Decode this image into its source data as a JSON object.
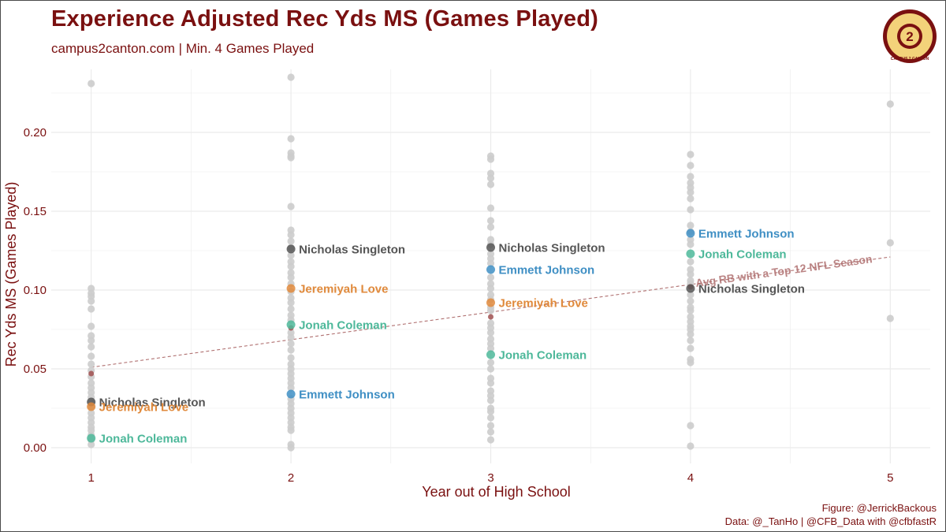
{
  "title": "Experience Adjusted Rec Yds MS (Games Played)",
  "subtitle": "campus2canton.com | Min. 4 Games Played",
  "caption_line1": "Figure: @JerrickBackous",
  "caption_line2": "Data: @_TanHo | @CFB_Data with @cfbfastR",
  "logo_text": "CAMPUS 2 CANTON",
  "colors": {
    "title": "#7a1010",
    "grey_points": "#cccccc",
    "grid": "#ebebeb",
    "trend": "#b07070",
    "Nicholas Singleton": "#555555",
    "Jeremiyah Love": "#e08a3c",
    "Jonah Coleman": "#4db89a",
    "Emmett Johnson": "#3f8fc4"
  },
  "chart_data": {
    "type": "scatter",
    "title": "Experience Adjusted Rec Yds MS (Games Played)",
    "xlabel": "Year out of High School",
    "ylabel": "Rec Yds MS (Games Played)",
    "xlim": [
      0.8,
      5.2
    ],
    "ylim": [
      -0.01,
      0.24
    ],
    "xticks": [
      1,
      2,
      3,
      4,
      5
    ],
    "yticks": [
      0.0,
      0.05,
      0.1,
      0.15,
      0.2
    ],
    "ytick_labels": [
      "0.00",
      "0.05",
      "0.10",
      "0.15",
      "0.20"
    ],
    "grid": true,
    "background_points": [
      {
        "x": 1,
        "y": 0.231
      },
      {
        "x": 1,
        "y": 0.101
      },
      {
        "x": 1,
        "y": 0.098
      },
      {
        "x": 1,
        "y": 0.096
      },
      {
        "x": 1,
        "y": 0.093
      },
      {
        "x": 1,
        "y": 0.088
      },
      {
        "x": 1,
        "y": 0.077
      },
      {
        "x": 1,
        "y": 0.071
      },
      {
        "x": 1,
        "y": 0.068
      },
      {
        "x": 1,
        "y": 0.064
      },
      {
        "x": 1,
        "y": 0.058
      },
      {
        "x": 1,
        "y": 0.053
      },
      {
        "x": 1,
        "y": 0.049
      },
      {
        "x": 1,
        "y": 0.045
      },
      {
        "x": 1,
        "y": 0.041
      },
      {
        "x": 1,
        "y": 0.038
      },
      {
        "x": 1,
        "y": 0.035
      },
      {
        "x": 1,
        "y": 0.032
      },
      {
        "x": 1,
        "y": 0.029
      },
      {
        "x": 1,
        "y": 0.026
      },
      {
        "x": 1,
        "y": 0.022
      },
      {
        "x": 1,
        "y": 0.019
      },
      {
        "x": 1,
        "y": 0.016
      },
      {
        "x": 1,
        "y": 0.013
      },
      {
        "x": 1,
        "y": 0.011
      },
      {
        "x": 1,
        "y": 0.008
      },
      {
        "x": 1,
        "y": 0.005
      },
      {
        "x": 1,
        "y": 0.002
      },
      {
        "x": 2,
        "y": 0.235
      },
      {
        "x": 2,
        "y": 0.196
      },
      {
        "x": 2,
        "y": 0.187
      },
      {
        "x": 2,
        "y": 0.185
      },
      {
        "x": 2,
        "y": 0.184
      },
      {
        "x": 2,
        "y": 0.153
      },
      {
        "x": 2,
        "y": 0.138
      },
      {
        "x": 2,
        "y": 0.135
      },
      {
        "x": 2,
        "y": 0.131
      },
      {
        "x": 2,
        "y": 0.127
      },
      {
        "x": 2,
        "y": 0.122
      },
      {
        "x": 2,
        "y": 0.118
      },
      {
        "x": 2,
        "y": 0.115
      },
      {
        "x": 2,
        "y": 0.111
      },
      {
        "x": 2,
        "y": 0.108
      },
      {
        "x": 2,
        "y": 0.104
      },
      {
        "x": 2,
        "y": 0.099
      },
      {
        "x": 2,
        "y": 0.095
      },
      {
        "x": 2,
        "y": 0.092
      },
      {
        "x": 2,
        "y": 0.088
      },
      {
        "x": 2,
        "y": 0.084
      },
      {
        "x": 2,
        "y": 0.081
      },
      {
        "x": 2,
        "y": 0.073
      },
      {
        "x": 2,
        "y": 0.07
      },
      {
        "x": 2,
        "y": 0.066
      },
      {
        "x": 2,
        "y": 0.062
      },
      {
        "x": 2,
        "y": 0.057
      },
      {
        "x": 2,
        "y": 0.053
      },
      {
        "x": 2,
        "y": 0.05
      },
      {
        "x": 2,
        "y": 0.047
      },
      {
        "x": 2,
        "y": 0.044
      },
      {
        "x": 2,
        "y": 0.041
      },
      {
        "x": 2,
        "y": 0.038
      },
      {
        "x": 2,
        "y": 0.031
      },
      {
        "x": 2,
        "y": 0.028
      },
      {
        "x": 2,
        "y": 0.025
      },
      {
        "x": 2,
        "y": 0.022
      },
      {
        "x": 2,
        "y": 0.019
      },
      {
        "x": 2,
        "y": 0.016
      },
      {
        "x": 2,
        "y": 0.013
      },
      {
        "x": 2,
        "y": 0.011
      },
      {
        "x": 2,
        "y": 0.002
      },
      {
        "x": 2,
        "y": 0.0
      },
      {
        "x": 3,
        "y": 0.185
      },
      {
        "x": 3,
        "y": 0.183
      },
      {
        "x": 3,
        "y": 0.174
      },
      {
        "x": 3,
        "y": 0.171
      },
      {
        "x": 3,
        "y": 0.167
      },
      {
        "x": 3,
        "y": 0.152
      },
      {
        "x": 3,
        "y": 0.144
      },
      {
        "x": 3,
        "y": 0.14
      },
      {
        "x": 3,
        "y": 0.132
      },
      {
        "x": 3,
        "y": 0.129
      },
      {
        "x": 3,
        "y": 0.123
      },
      {
        "x": 3,
        "y": 0.12
      },
      {
        "x": 3,
        "y": 0.117
      },
      {
        "x": 3,
        "y": 0.108
      },
      {
        "x": 3,
        "y": 0.104
      },
      {
        "x": 3,
        "y": 0.101
      },
      {
        "x": 3,
        "y": 0.097
      },
      {
        "x": 3,
        "y": 0.094
      },
      {
        "x": 3,
        "y": 0.089
      },
      {
        "x": 3,
        "y": 0.087
      },
      {
        "x": 3,
        "y": 0.079
      },
      {
        "x": 3,
        "y": 0.076
      },
      {
        "x": 3,
        "y": 0.073
      },
      {
        "x": 3,
        "y": 0.069
      },
      {
        "x": 3,
        "y": 0.066
      },
      {
        "x": 3,
        "y": 0.063
      },
      {
        "x": 3,
        "y": 0.054
      },
      {
        "x": 3,
        "y": 0.05
      },
      {
        "x": 3,
        "y": 0.044
      },
      {
        "x": 3,
        "y": 0.041
      },
      {
        "x": 3,
        "y": 0.036
      },
      {
        "x": 3,
        "y": 0.033
      },
      {
        "x": 3,
        "y": 0.03
      },
      {
        "x": 3,
        "y": 0.025
      },
      {
        "x": 3,
        "y": 0.023
      },
      {
        "x": 3,
        "y": 0.019
      },
      {
        "x": 3,
        "y": 0.014
      },
      {
        "x": 3,
        "y": 0.01
      },
      {
        "x": 3,
        "y": 0.005
      },
      {
        "x": 4,
        "y": 0.186
      },
      {
        "x": 4,
        "y": 0.179
      },
      {
        "x": 4,
        "y": 0.172
      },
      {
        "x": 4,
        "y": 0.168
      },
      {
        "x": 4,
        "y": 0.165
      },
      {
        "x": 4,
        "y": 0.162
      },
      {
        "x": 4,
        "y": 0.158
      },
      {
        "x": 4,
        "y": 0.151
      },
      {
        "x": 4,
        "y": 0.141
      },
      {
        "x": 4,
        "y": 0.137
      },
      {
        "x": 4,
        "y": 0.132
      },
      {
        "x": 4,
        "y": 0.129
      },
      {
        "x": 4,
        "y": 0.118
      },
      {
        "x": 4,
        "y": 0.113
      },
      {
        "x": 4,
        "y": 0.11
      },
      {
        "x": 4,
        "y": 0.106
      },
      {
        "x": 4,
        "y": 0.104
      },
      {
        "x": 4,
        "y": 0.097
      },
      {
        "x": 4,
        "y": 0.093
      },
      {
        "x": 4,
        "y": 0.089
      },
      {
        "x": 4,
        "y": 0.087
      },
      {
        "x": 4,
        "y": 0.083
      },
      {
        "x": 4,
        "y": 0.08
      },
      {
        "x": 4,
        "y": 0.077
      },
      {
        "x": 4,
        "y": 0.075
      },
      {
        "x": 4,
        "y": 0.072
      },
      {
        "x": 4,
        "y": 0.068
      },
      {
        "x": 4,
        "y": 0.063
      },
      {
        "x": 4,
        "y": 0.056
      },
      {
        "x": 4,
        "y": 0.054
      },
      {
        "x": 4,
        "y": 0.014
      },
      {
        "x": 4,
        "y": 0.001
      },
      {
        "x": 5,
        "y": 0.218
      },
      {
        "x": 5,
        "y": 0.13
      },
      {
        "x": 5,
        "y": 0.082
      }
    ],
    "reference_points": [
      {
        "x": 1,
        "y": 0.047
      },
      {
        "x": 2,
        "y": 0.076
      },
      {
        "x": 3,
        "y": 0.083
      },
      {
        "x": 4,
        "y": 0.102
      }
    ],
    "trend_line": {
      "label": "Avg RB with a Top 12 NFL Season",
      "x": [
        1,
        5
      ],
      "y": [
        0.051,
        0.121
      ]
    },
    "series": [
      {
        "name": "Nicholas Singleton",
        "points": [
          {
            "x": 1,
            "y": 0.029
          },
          {
            "x": 2,
            "y": 0.126
          },
          {
            "x": 3,
            "y": 0.127
          },
          {
            "x": 4,
            "y": 0.101
          }
        ]
      },
      {
        "name": "Jeremiyah Love",
        "points": [
          {
            "x": 1,
            "y": 0.026
          },
          {
            "x": 2,
            "y": 0.101
          },
          {
            "x": 3,
            "y": 0.092
          }
        ]
      },
      {
        "name": "Jonah Coleman",
        "points": [
          {
            "x": 1,
            "y": 0.006
          },
          {
            "x": 2,
            "y": 0.078
          },
          {
            "x": 3,
            "y": 0.059
          },
          {
            "x": 4,
            "y": 0.123
          }
        ]
      },
      {
        "name": "Emmett Johnson",
        "points": [
          {
            "x": 2,
            "y": 0.034
          },
          {
            "x": 3,
            "y": 0.113
          },
          {
            "x": 4,
            "y": 0.136
          }
        ]
      }
    ]
  }
}
